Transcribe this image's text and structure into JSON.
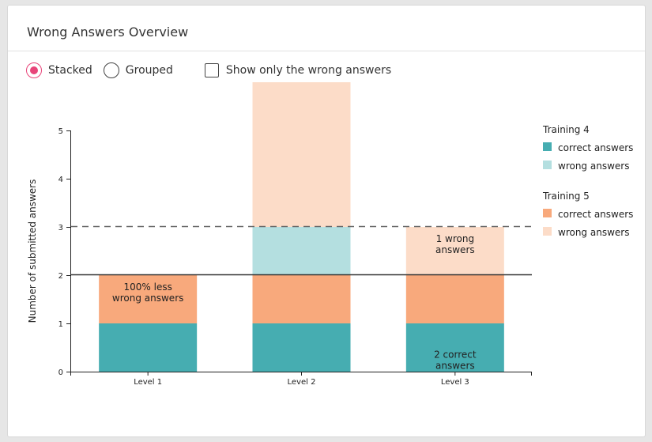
{
  "card": {
    "title": "Wrong Answers Overview"
  },
  "controls": {
    "stacked_label": "Stacked",
    "grouped_label": "Grouped",
    "wrong_only_label": "Show only the wrong answers",
    "selected_mode": "stacked"
  },
  "colors": {
    "t4_correct": "#46adb1",
    "t4_wrong": "#b4dfe0",
    "t5_correct": "#f8a97c",
    "t5_wrong": "#fcdcc8",
    "accent": "#e8457a"
  },
  "chart_data": {
    "type": "bar",
    "stacked": true,
    "categories": [
      "Level 1",
      "Level 2",
      "Level 3"
    ],
    "ylabel": "Number of submitted answers",
    "ylim": [
      0,
      5
    ],
    "yticks": [
      0,
      1,
      2,
      3,
      4,
      5
    ],
    "series": [
      {
        "group": "Training 4",
        "name": "correct answers",
        "color": "#46adb1",
        "values": [
          1,
          1,
          1
        ]
      },
      {
        "group": "Training 5",
        "name": "correct answers",
        "color": "#f8a97c",
        "values": [
          1,
          1,
          1
        ]
      },
      {
        "group": "Training 4",
        "name": "wrong answers",
        "color": "#b4dfe0",
        "values": [
          0,
          1,
          0
        ]
      },
      {
        "group": "Training 5",
        "name": "wrong answers",
        "color": "#fcdcc8",
        "values": [
          0,
          3,
          1
        ]
      }
    ],
    "reference_lines": [
      {
        "value": 2,
        "style": "solid"
      },
      {
        "value": 3,
        "style": "dashed"
      }
    ],
    "legend": {
      "position": "right",
      "groups": [
        {
          "title": "Training 4",
          "items": [
            {
              "label": "correct answers",
              "color": "#46adb1"
            },
            {
              "label": "wrong answers",
              "color": "#b4dfe0"
            }
          ]
        },
        {
          "title": "Training 5",
          "items": [
            {
              "label": "correct answers",
              "color": "#f8a97c"
            },
            {
              "label": "wrong answers",
              "color": "#fcdcc8"
            }
          ]
        }
      ]
    },
    "annotations": [
      {
        "category": "Level 1",
        "lines": [
          "100% less",
          "wrong answers"
        ]
      },
      {
        "category": "Level 3",
        "lines": [
          "1 wrong",
          "answers"
        ]
      },
      {
        "category": "Level 3",
        "lines": [
          "2 correct",
          "answers"
        ]
      }
    ]
  }
}
